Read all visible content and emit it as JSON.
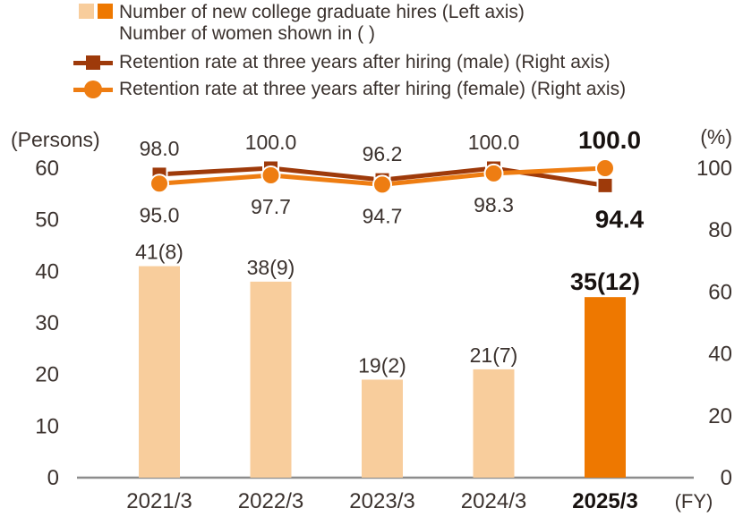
{
  "legend": {
    "bars_label_line1": "Number of new college graduate hires (Left axis)",
    "bars_label_line2": "Number of women shown in ( )",
    "male_label": "Retention rate at three years after hiring (male) (Right axis)",
    "female_label": "Retention rate at three years after hiring (female) (Right axis)"
  },
  "colors": {
    "bar_light": "#f8cd9c",
    "bar_highlight": "#ee7800",
    "male_line": "#9e3a0a",
    "female_line": "#ee7d12",
    "text": "#3b322e",
    "text_bold": "#181210",
    "axis_line": "#8c8c8c",
    "marker_outline": "#ffffff"
  },
  "chart_data": {
    "type": "bar+line combo",
    "title": "",
    "categories": [
      "2021/3",
      "2022/3",
      "2023/3",
      "2024/3",
      "2025/3"
    ],
    "x_axis_unit": "(FY)",
    "highlight_index": 4,
    "grid": false,
    "legend_position": "top-left",
    "bars": {
      "name": "Number of new college graduate hires",
      "axis": "left",
      "values": [
        41,
        38,
        19,
        21,
        35
      ],
      "women_values": [
        8,
        9,
        2,
        7,
        12
      ],
      "labels": [
        "41(8)",
        "38(9)",
        "19(2)",
        "21(7)",
        "35(12)"
      ]
    },
    "lines": [
      {
        "name": "Retention rate at three years after hiring (male)",
        "axis": "right",
        "marker": "square",
        "values": [
          98.0,
          100.0,
          96.2,
          100.0,
          94.4
        ],
        "labels": [
          "98.0",
          "100.0",
          "96.2",
          "100.0",
          "94.4"
        ],
        "label_side": [
          "above",
          "above",
          "above",
          "above",
          "below"
        ]
      },
      {
        "name": "Retention rate at three years after hiring (female)",
        "axis": "right",
        "marker": "circle",
        "values": [
          95.0,
          97.7,
          94.7,
          98.3,
          100.0
        ],
        "labels": [
          "95.0",
          "97.7",
          "94.7",
          "98.3",
          "100.0"
        ],
        "label_side": [
          "below",
          "below",
          "below",
          "below",
          "above"
        ]
      }
    ],
    "left_axis": {
      "title": "(Persons)",
      "ticks": [
        0,
        10,
        20,
        30,
        40,
        50,
        60
      ],
      "range": [
        0,
        60
      ]
    },
    "right_axis": {
      "title": "(%)",
      "ticks": [
        0,
        20,
        40,
        60,
        80,
        100
      ],
      "range": [
        0,
        100
      ]
    }
  }
}
